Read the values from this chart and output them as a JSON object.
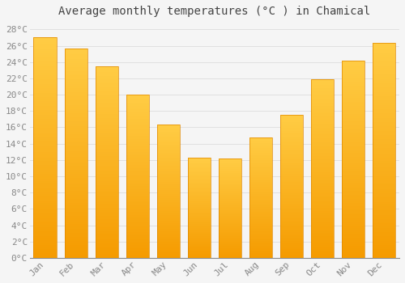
{
  "title": "Average monthly temperatures (°C ) in Chamical",
  "months": [
    "Jan",
    "Feb",
    "Mar",
    "Apr",
    "May",
    "Jun",
    "Jul",
    "Aug",
    "Sep",
    "Oct",
    "Nov",
    "Dec"
  ],
  "temperatures": [
    27.0,
    25.7,
    23.5,
    20.0,
    16.3,
    12.3,
    12.2,
    14.8,
    17.5,
    21.9,
    24.2,
    26.4
  ],
  "bar_color_top": "#FFCC44",
  "bar_color_bottom": "#F59B00",
  "bar_edge_color": "#E08800",
  "ylim": [
    0,
    29
  ],
  "yticks": [
    0,
    2,
    4,
    6,
    8,
    10,
    12,
    14,
    16,
    18,
    20,
    22,
    24,
    26,
    28
  ],
  "background_color": "#f5f5f5",
  "plot_bg_color": "#f5f5f5",
  "grid_color": "#dddddd",
  "title_fontsize": 10,
  "tick_fontsize": 8,
  "tick_color": "#888888",
  "title_color": "#444444"
}
